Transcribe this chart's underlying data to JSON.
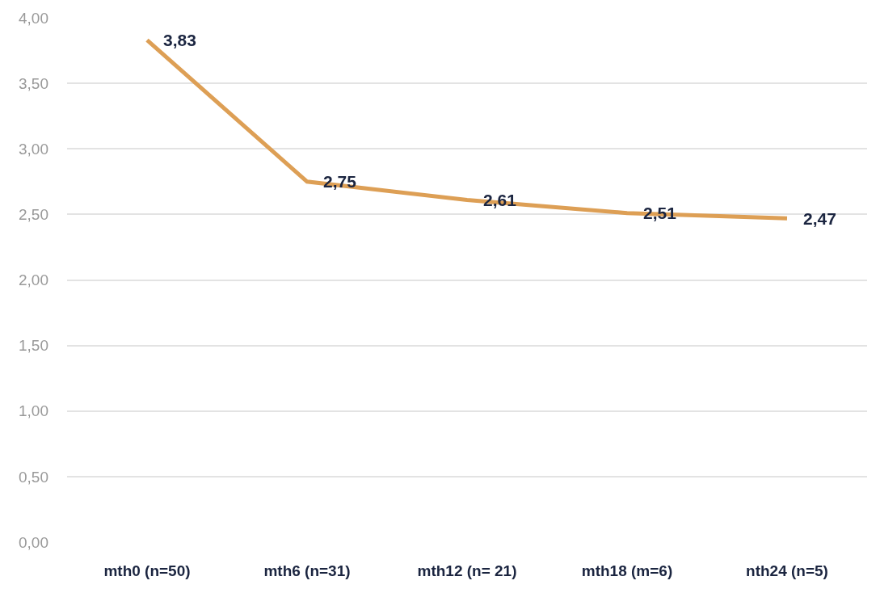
{
  "chart_data": {
    "type": "line",
    "categories": [
      "mth0 (n=50)",
      "mth6 (n=31)",
      "mth12 (n= 21)",
      "mth18 (m=6)",
      "nth24 (n=5)"
    ],
    "series": [
      {
        "color": "#dd9f55",
        "values": [
          3.83,
          2.75,
          2.61,
          2.51,
          2.47
        ],
        "value_labels": [
          "3,83",
          "2,75",
          "2,61",
          "2,51",
          "2,47"
        ]
      }
    ],
    "ylim": [
      0,
      4
    ],
    "yticks": [
      {
        "value": 0,
        "label": "0,00"
      },
      {
        "value": 0.5,
        "label": "0,50"
      },
      {
        "value": 1,
        "label": "1,00"
      },
      {
        "value": 1.5,
        "label": "1,50"
      },
      {
        "value": 2,
        "label": "2,00"
      },
      {
        "value": 2.5,
        "label": "2,50"
      },
      {
        "value": 3,
        "label": "3,00"
      },
      {
        "value": 3.5,
        "label": "3,50"
      },
      {
        "value": 4,
        "label": "4,00"
      }
    ],
    "grid": "y"
  }
}
